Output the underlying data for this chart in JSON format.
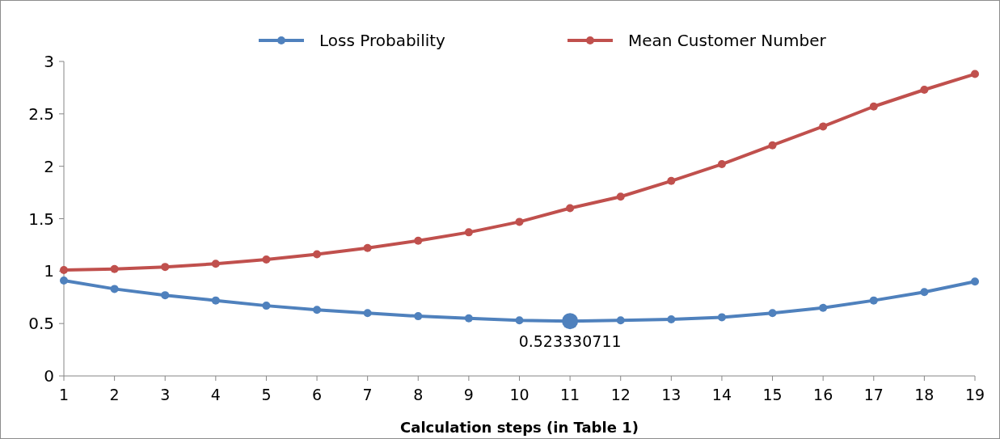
{
  "chart_data": {
    "type": "line",
    "xlabel": "Calculation steps (in Table 1)",
    "x": [
      1,
      2,
      3,
      4,
      5,
      6,
      7,
      8,
      9,
      10,
      11,
      12,
      13,
      14,
      15,
      16,
      17,
      18,
      19
    ],
    "series": [
      {
        "name": "Loss Probability",
        "color": "#4f81bd",
        "values": [
          0.91,
          0.83,
          0.77,
          0.72,
          0.67,
          0.63,
          0.6,
          0.57,
          0.55,
          0.53,
          0.523330711,
          0.53,
          0.54,
          0.56,
          0.6,
          0.65,
          0.72,
          0.8,
          0.9
        ]
      },
      {
        "name": "Mean Customer Number",
        "color": "#c0504d",
        "values": [
          1.01,
          1.02,
          1.04,
          1.07,
          1.11,
          1.16,
          1.22,
          1.29,
          1.37,
          1.47,
          1.6,
          1.71,
          1.86,
          2.02,
          2.2,
          2.38,
          2.57,
          2.73,
          2.88
        ]
      }
    ],
    "xlim": [
      1,
      19
    ],
    "xticks": [
      1,
      2,
      3,
      4,
      5,
      6,
      7,
      8,
      9,
      10,
      11,
      12,
      13,
      14,
      15,
      16,
      17,
      18,
      19
    ],
    "ylim": [
      0,
      3
    ],
    "yticks": [
      0,
      0.5,
      1,
      1.5,
      2,
      2.5,
      3
    ],
    "annotations": [
      {
        "text": "0.523330711",
        "x": 11,
        "y": 0.523330711
      }
    ],
    "legend": "top",
    "marker": "circle",
    "line_style": "solid",
    "grid": false
  }
}
